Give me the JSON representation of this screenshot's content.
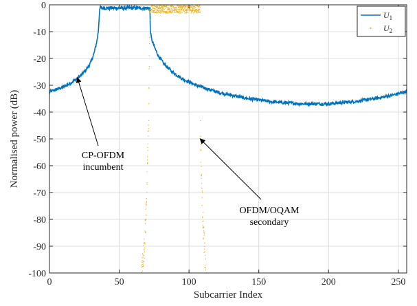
{
  "chart_data": {
    "type": "line",
    "xlabel": "Subcarrier Index",
    "ylabel": "Normalised power (dB)",
    "xlim": [
      0,
      256
    ],
    "ylim": [
      -100,
      0
    ],
    "xticks": [
      0,
      50,
      100,
      150,
      200,
      250
    ],
    "yticks": [
      0,
      -10,
      -20,
      -30,
      -40,
      -50,
      -60,
      -70,
      -80,
      -90,
      -100
    ],
    "grid": true,
    "legend_position": "top-right",
    "series": [
      {
        "name": "U",
        "subscript": "1",
        "color": "#0072BD",
        "style": "line",
        "description": "CP-OFDM incumbent",
        "band": [
          36,
          72
        ],
        "in_band_level": -1.2,
        "points": [
          [
            0,
            -32.5
          ],
          [
            5,
            -31.6
          ],
          [
            10,
            -30.6
          ],
          [
            15,
            -29.2
          ],
          [
            20,
            -27.5
          ],
          [
            25,
            -25.0
          ],
          [
            28,
            -23.0
          ],
          [
            30,
            -21.0
          ],
          [
            32,
            -18.0
          ],
          [
            34,
            -13.5
          ],
          [
            35,
            -10.0
          ],
          [
            36,
            -1.5
          ],
          [
            54,
            -1.2
          ],
          [
            71,
            -1.5
          ],
          [
            72,
            -8.0
          ],
          [
            73,
            -12.5
          ],
          [
            75,
            -15.5
          ],
          [
            78,
            -19.0
          ],
          [
            82,
            -22.0
          ],
          [
            88,
            -25.0
          ],
          [
            95,
            -27.5
          ],
          [
            105,
            -30.0
          ],
          [
            120,
            -32.5
          ],
          [
            140,
            -34.8
          ],
          [
            160,
            -36.2
          ],
          [
            180,
            -36.9
          ],
          [
            200,
            -36.9
          ],
          [
            220,
            -36.0
          ],
          [
            235,
            -34.8
          ],
          [
            245,
            -33.8
          ],
          [
            256,
            -32.3
          ]
        ]
      },
      {
        "name": "U",
        "subscript": "2",
        "color": "#EDB120",
        "style": "markers",
        "description": "OFDM/OQAM secondary",
        "band": [
          72,
          108
        ],
        "in_band_level": -1.5,
        "points": [
          [
            66,
            -100
          ],
          [
            68,
            -90
          ],
          [
            69,
            -80
          ],
          [
            70,
            -65
          ],
          [
            71,
            -45
          ],
          [
            72,
            -1.5
          ],
          [
            90,
            -1.5
          ],
          [
            107,
            -1.5
          ],
          [
            108,
            -45
          ],
          [
            109,
            -65
          ],
          [
            110,
            -80
          ],
          [
            111,
            -90
          ],
          [
            112,
            -100
          ]
        ]
      }
    ],
    "annotations": [
      {
        "lines": [
          "CP-OFDM",
          "incumbent"
        ],
        "arrow_to": [
          20,
          -27.2
        ]
      },
      {
        "lines": [
          "OFDM/OQAM",
          "secondary"
        ],
        "arrow_to": [
          108,
          -50
        ]
      }
    ]
  }
}
